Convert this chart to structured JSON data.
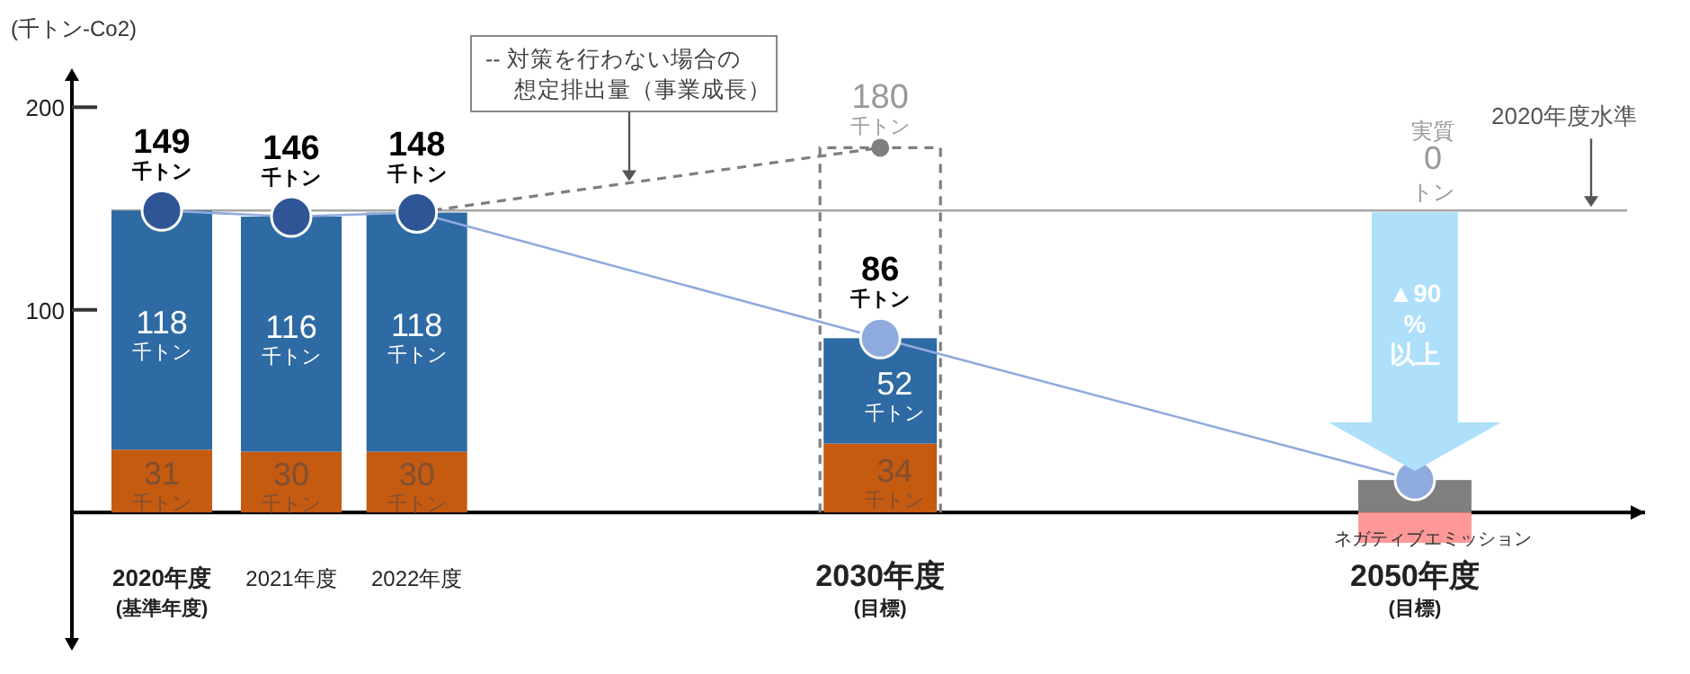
{
  "chart_data": {
    "type": "bar",
    "stacked": true,
    "ylabel": "(千トン-Co2)",
    "categories": [
      "2020年度\n(基準年度)",
      "2021年度",
      "2022年度",
      "2030年度\n(目標)",
      "2050年度\n(目標)"
    ],
    "ylim": [
      -62,
      213
    ],
    "yticks": [
      100,
      200
    ],
    "series": [
      {
        "color": "#c55a11",
        "values": [
          31,
          30,
          30,
          34,
          null
        ],
        "value_labels": [
          "31千トン",
          "30千トン",
          "30千トン",
          "34千トン",
          null
        ]
      },
      {
        "color": "#2e6aa3",
        "values": [
          118,
          116,
          118,
          52,
          null
        ],
        "value_labels": [
          "118千トン",
          "116千トン",
          "118千トン",
          "52千トン",
          null
        ]
      },
      {
        "color": "#7f7f7f",
        "values": [
          null,
          null,
          null,
          null,
          16
        ]
      },
      {
        "color": "#ff9999",
        "values": [
          null,
          null,
          null,
          null,
          -15
        ]
      },
      {
        "type": "line",
        "color": "#8faadc",
        "colors": [
          "#2f5597",
          "#2f5597",
          "#2f5597",
          "#8faadc",
          "#8faadc"
        ],
        "marker": "circle",
        "values": [
          149,
          146,
          148,
          86,
          16
        ],
        "value_labels": [
          "149千トン",
          "146千トン",
          "148千トン",
          "86千トン",
          null
        ]
      },
      {
        "type": "line",
        "line_style": "dashed",
        "color": "#7f7f7f",
        "marker": "circle",
        "values": [
          null,
          null,
          148,
          180,
          null
        ],
        "value_labels": [
          null,
          null,
          null,
          "180千トン",
          null
        ]
      }
    ],
    "ref_lines": [
      {
        "axis": "y",
        "value": 149,
        "label": "2020年度水準",
        "color": "#a6a6a6"
      }
    ],
    "annotations": [
      "-- 対策を行わない場合の想定排出量（事業成長）",
      "▲90\n%\n以上",
      "ネガティブエミッション",
      "実質\n0\nトン"
    ]
  }
}
